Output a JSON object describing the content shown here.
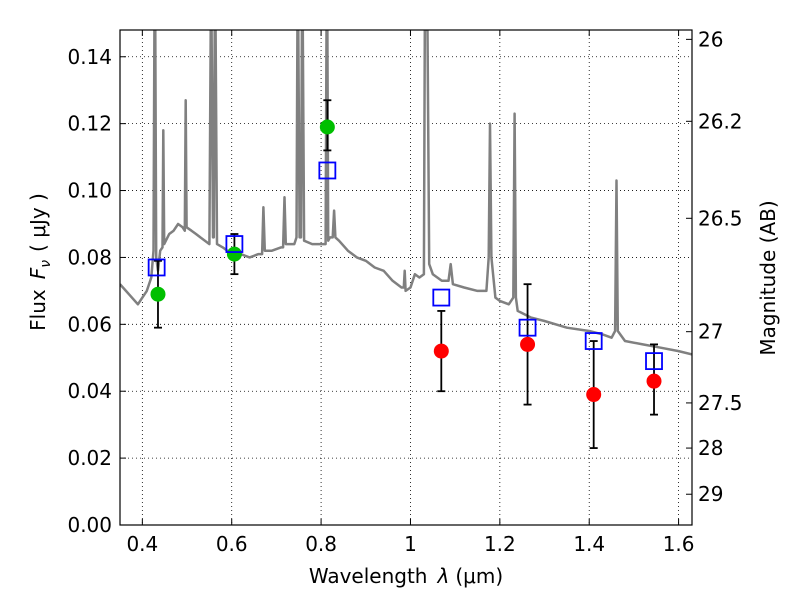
{
  "chart_data": {
    "type": "scatter",
    "xlabel_text": "Wavelength",
    "xlabel_symbol": "λ",
    "xlabel_unit": "(μm)",
    "ylabel_text": "Flux",
    "ylabel_symbol": "F",
    "ylabel_subscript": "ν",
    "ylabel_unit": "( μJy )",
    "y2label": "Magnitude (AB)",
    "xlim": [
      0.35,
      1.63
    ],
    "ylim": [
      0.0,
      0.148
    ],
    "grid": true,
    "xticks": [
      {
        "v": 0.4,
        "label": "0.4"
      },
      {
        "v": 0.6,
        "label": "0.6"
      },
      {
        "v": 0.8,
        "label": "0.8"
      },
      {
        "v": 1.0,
        "label": "1"
      },
      {
        "v": 1.2,
        "label": "1.2"
      },
      {
        "v": 1.4,
        "label": "1.4"
      },
      {
        "v": 1.6,
        "label": "1.6"
      }
    ],
    "yticks": [
      {
        "v": 0.0,
        "label": "0.00"
      },
      {
        "v": 0.02,
        "label": "0.02"
      },
      {
        "v": 0.04,
        "label": "0.04"
      },
      {
        "v": 0.06,
        "label": "0.06"
      },
      {
        "v": 0.08,
        "label": "0.08"
      },
      {
        "v": 0.1,
        "label": "0.10"
      },
      {
        "v": 0.12,
        "label": "0.12"
      },
      {
        "v": 0.14,
        "label": "0.14"
      }
    ],
    "y2ticks": [
      {
        "flux": 0.1452,
        "label": "26"
      },
      {
        "flux": 0.1207,
        "label": "26.2"
      },
      {
        "flux": 0.0917,
        "label": "26.5"
      },
      {
        "flux": 0.0578,
        "label": "27"
      },
      {
        "flux": 0.0365,
        "label": "27.5"
      },
      {
        "flux": 0.023,
        "label": "28"
      },
      {
        "flux": 0.0092,
        "label": "29"
      }
    ],
    "series": [
      {
        "name": "model spectrum",
        "kind": "line",
        "color": "#808080",
        "points": [
          [
            0.35,
            0.072
          ],
          [
            0.37,
            0.069
          ],
          [
            0.39,
            0.066
          ],
          [
            0.41,
            0.07
          ],
          [
            0.42,
            0.074
          ],
          [
            0.425,
            0.082
          ],
          [
            0.427,
            0.148
          ],
          [
            0.429,
            0.148
          ],
          [
            0.431,
            0.08
          ],
          [
            0.435,
            0.076
          ],
          [
            0.44,
            0.082
          ],
          [
            0.445,
            0.083
          ],
          [
            0.447,
            0.118
          ],
          [
            0.449,
            0.084
          ],
          [
            0.46,
            0.087
          ],
          [
            0.47,
            0.088
          ],
          [
            0.48,
            0.09
          ],
          [
            0.49,
            0.089
          ],
          [
            0.495,
            0.088
          ],
          [
            0.497,
            0.127
          ],
          [
            0.499,
            0.089
          ],
          [
            0.51,
            0.088
          ],
          [
            0.52,
            0.087
          ],
          [
            0.53,
            0.086
          ],
          [
            0.54,
            0.085
          ],
          [
            0.55,
            0.084
          ],
          [
            0.553,
            0.148
          ],
          [
            0.555,
            0.148
          ],
          [
            0.558,
            0.086
          ],
          [
            0.56,
            0.086
          ],
          [
            0.562,
            0.148
          ],
          [
            0.564,
            0.148
          ],
          [
            0.567,
            0.084
          ],
          [
            0.58,
            0.083
          ],
          [
            0.59,
            0.082
          ],
          [
            0.6,
            0.081
          ],
          [
            0.62,
            0.081
          ],
          [
            0.64,
            0.08
          ],
          [
            0.66,
            0.081
          ],
          [
            0.668,
            0.081
          ],
          [
            0.671,
            0.095
          ],
          [
            0.674,
            0.082
          ],
          [
            0.69,
            0.082
          ],
          [
            0.71,
            0.083
          ],
          [
            0.715,
            0.083
          ],
          [
            0.718,
            0.098
          ],
          [
            0.721,
            0.084
          ],
          [
            0.73,
            0.084
          ],
          [
            0.74,
            0.084
          ],
          [
            0.745,
            0.086
          ],
          [
            0.747,
            0.148
          ],
          [
            0.749,
            0.148
          ],
          [
            0.752,
            0.086
          ],
          [
            0.755,
            0.086
          ],
          [
            0.757,
            0.148
          ],
          [
            0.759,
            0.148
          ],
          [
            0.762,
            0.085
          ],
          [
            0.78,
            0.084
          ],
          [
            0.8,
            0.084
          ],
          [
            0.81,
            0.084
          ],
          [
            0.812,
            0.148
          ],
          [
            0.814,
            0.148
          ],
          [
            0.816,
            0.085
          ],
          [
            0.82,
            0.086
          ],
          [
            0.826,
            0.086
          ],
          [
            0.829,
            0.094
          ],
          [
            0.832,
            0.086
          ],
          [
            0.84,
            0.085
          ],
          [
            0.86,
            0.082
          ],
          [
            0.88,
            0.08
          ],
          [
            0.9,
            0.079
          ],
          [
            0.92,
            0.077
          ],
          [
            0.94,
            0.076
          ],
          [
            0.96,
            0.073
          ],
          [
            0.98,
            0.071
          ],
          [
            0.985,
            0.071
          ],
          [
            0.987,
            0.076
          ],
          [
            0.989,
            0.07
          ],
          [
            1.0,
            0.071
          ],
          [
            1.01,
            0.075
          ],
          [
            1.02,
            0.074
          ],
          [
            1.03,
            0.075
          ],
          [
            1.032,
            0.148
          ],
          [
            1.038,
            0.148
          ],
          [
            1.042,
            0.078
          ],
          [
            1.05,
            0.075
          ],
          [
            1.07,
            0.073
          ],
          [
            1.085,
            0.073
          ],
          [
            1.09,
            0.078
          ],
          [
            1.095,
            0.072
          ],
          [
            1.12,
            0.071
          ],
          [
            1.15,
            0.07
          ],
          [
            1.17,
            0.07
          ],
          [
            1.175,
            0.08
          ],
          [
            1.178,
            0.12
          ],
          [
            1.181,
            0.08
          ],
          [
            1.19,
            0.068
          ],
          [
            1.2,
            0.067
          ],
          [
            1.22,
            0.066
          ],
          [
            1.23,
            0.068
          ],
          [
            1.233,
            0.123
          ],
          [
            1.236,
            0.068
          ],
          [
            1.24,
            0.064
          ],
          [
            1.27,
            0.062
          ],
          [
            1.3,
            0.061
          ],
          [
            1.35,
            0.059
          ],
          [
            1.4,
            0.058
          ],
          [
            1.43,
            0.057
          ],
          [
            1.45,
            0.056
          ],
          [
            1.458,
            0.058
          ],
          [
            1.461,
            0.103
          ],
          [
            1.464,
            0.058
          ],
          [
            1.48,
            0.055
          ],
          [
            1.52,
            0.054
          ],
          [
            1.56,
            0.053
          ],
          [
            1.6,
            0.052
          ],
          [
            1.63,
            0.051
          ]
        ]
      },
      {
        "name": "green detections",
        "kind": "points",
        "marker": "circle",
        "color": "#00bf00",
        "points": [
          {
            "x": 0.435,
            "y": 0.069,
            "lo": 0.059,
            "hi": 0.079
          },
          {
            "x": 0.606,
            "y": 0.081,
            "lo": 0.075,
            "hi": 0.087
          },
          {
            "x": 0.814,
            "y": 0.119,
            "lo": 0.112,
            "hi": 0.127
          }
        ]
      },
      {
        "name": "red detections",
        "kind": "points",
        "marker": "circle",
        "color": "#ff0000",
        "points": [
          {
            "x": 1.069,
            "y": 0.052,
            "lo": 0.04,
            "hi": 0.064
          },
          {
            "x": 1.262,
            "y": 0.054,
            "lo": 0.036,
            "hi": 0.072
          },
          {
            "x": 1.41,
            "y": 0.039,
            "lo": 0.023,
            "hi": 0.055
          },
          {
            "x": 1.545,
            "y": 0.043,
            "lo": 0.033,
            "hi": 0.054
          }
        ]
      },
      {
        "name": "model photometry",
        "kind": "points",
        "marker": "square",
        "color": "#0000ff",
        "points": [
          {
            "x": 0.432,
            "y": 0.077
          },
          {
            "x": 0.606,
            "y": 0.084
          },
          {
            "x": 0.814,
            "y": 0.106
          },
          {
            "x": 1.069,
            "y": 0.068
          },
          {
            "x": 1.262,
            "y": 0.059
          },
          {
            "x": 1.41,
            "y": 0.055
          },
          {
            "x": 1.545,
            "y": 0.049
          }
        ]
      }
    ]
  }
}
